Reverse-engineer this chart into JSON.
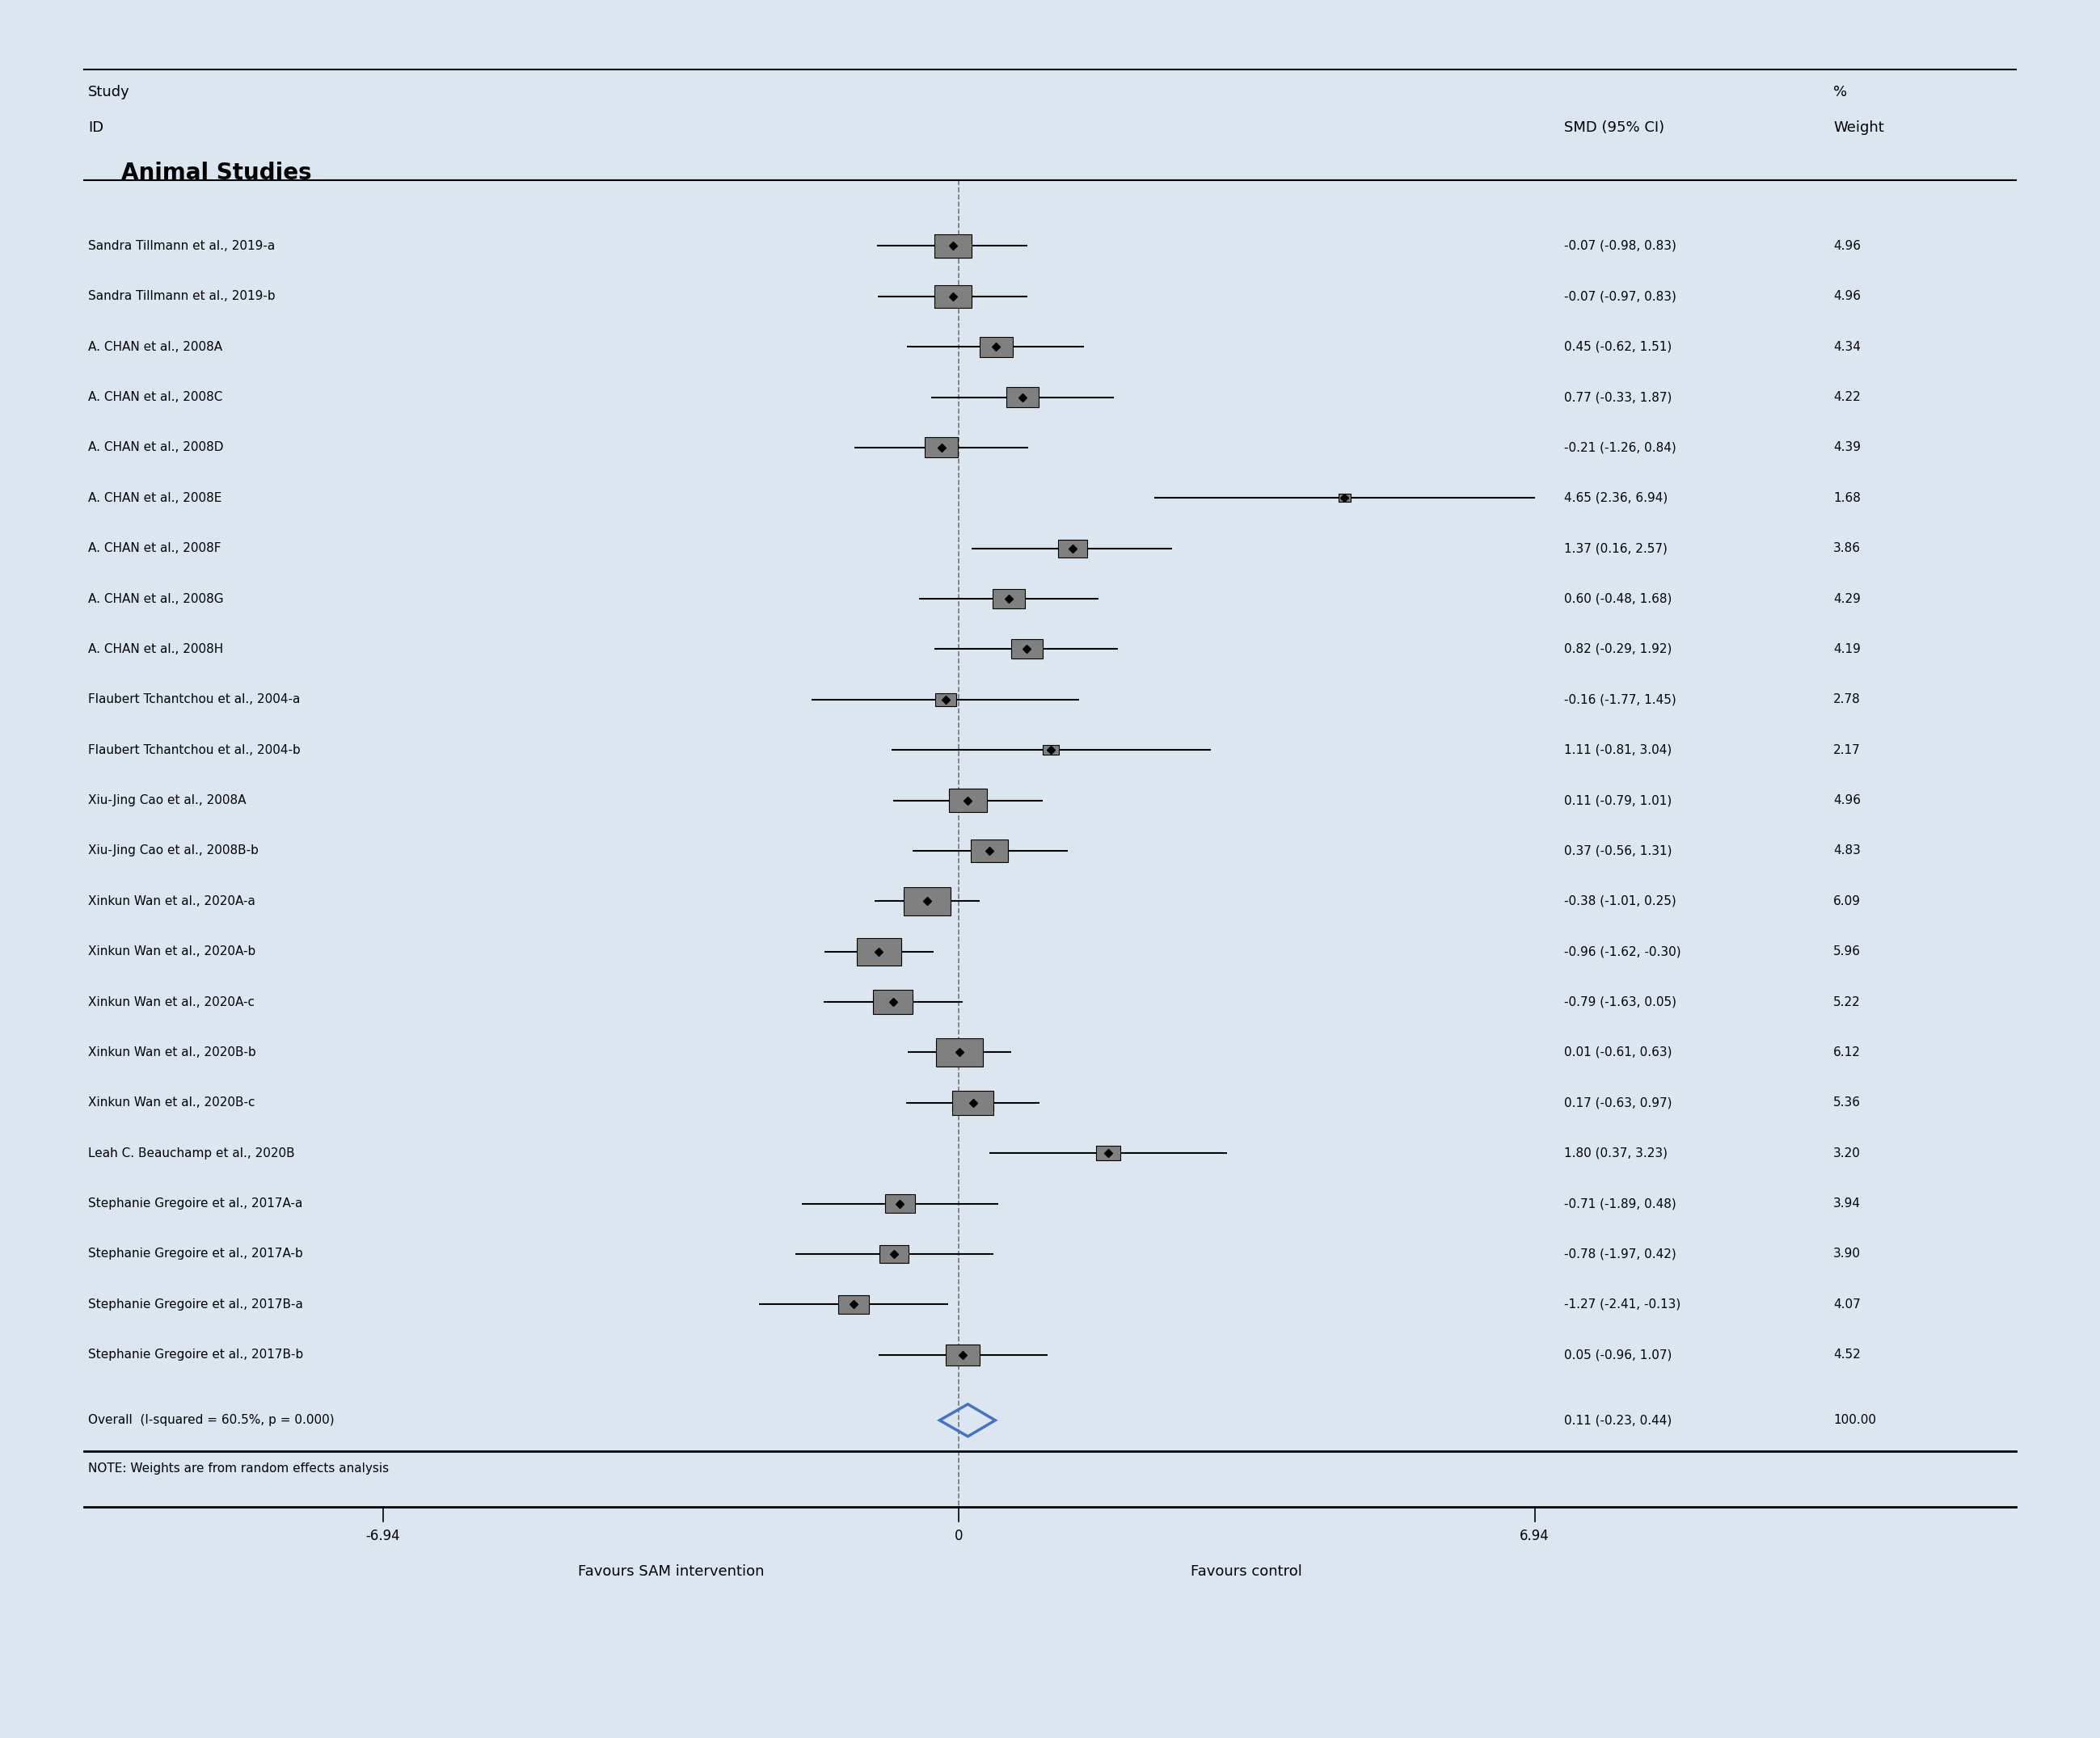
{
  "studies": [
    {
      "label": "Sandra Tillmann et al., 2019-a",
      "smd": -0.07,
      "ci_low": -0.98,
      "ci_high": 0.83,
      "weight": 4.96,
      "weight_str": "4.96"
    },
    {
      "label": "Sandra Tillmann et al., 2019-b",
      "smd": -0.07,
      "ci_low": -0.97,
      "ci_high": 0.83,
      "weight": 4.96,
      "weight_str": "4.96"
    },
    {
      "label": "A. CHAN et al., 2008A",
      "smd": 0.45,
      "ci_low": -0.62,
      "ci_high": 1.51,
      "weight": 4.34,
      "weight_str": "4.34"
    },
    {
      "label": "A. CHAN et al., 2008C",
      "smd": 0.77,
      "ci_low": -0.33,
      "ci_high": 1.87,
      "weight": 4.22,
      "weight_str": "4.22"
    },
    {
      "label": "A. CHAN et al., 2008D",
      "smd": -0.21,
      "ci_low": -1.26,
      "ci_high": 0.84,
      "weight": 4.39,
      "weight_str": "4.39"
    },
    {
      "label": "A. CHAN et al., 2008E",
      "smd": 4.65,
      "ci_low": 2.36,
      "ci_high": 6.94,
      "weight": 1.68,
      "weight_str": "1.68"
    },
    {
      "label": "A. CHAN et al., 2008F",
      "smd": 1.37,
      "ci_low": 0.16,
      "ci_high": 2.57,
      "weight": 3.86,
      "weight_str": "3.86"
    },
    {
      "label": "A. CHAN et al., 2008G",
      "smd": 0.6,
      "ci_low": -0.48,
      "ci_high": 1.68,
      "weight": 4.29,
      "weight_str": "4.29"
    },
    {
      "label": "A. CHAN et al., 2008H",
      "smd": 0.82,
      "ci_low": -0.29,
      "ci_high": 1.92,
      "weight": 4.19,
      "weight_str": "4.19"
    },
    {
      "label": "Flaubert Tchantchou et al., 2004-a",
      "smd": -0.16,
      "ci_low": -1.77,
      "ci_high": 1.45,
      "weight": 2.78,
      "weight_str": "2.78"
    },
    {
      "label": "Flaubert Tchantchou et al., 2004-b",
      "smd": 1.11,
      "ci_low": -0.81,
      "ci_high": 3.04,
      "weight": 2.17,
      "weight_str": "2.17"
    },
    {
      "label": "Xiu-Jing Cao et al., 2008A",
      "smd": 0.11,
      "ci_low": -0.79,
      "ci_high": 1.01,
      "weight": 4.96,
      "weight_str": "4.96"
    },
    {
      "label": "Xiu-Jing Cao et al., 2008B-b",
      "smd": 0.37,
      "ci_low": -0.56,
      "ci_high": 1.31,
      "weight": 4.83,
      "weight_str": "4.83"
    },
    {
      "label": "Xinkun Wan et al., 2020A-a",
      "smd": -0.38,
      "ci_low": -1.01,
      "ci_high": 0.25,
      "weight": 6.09,
      "weight_str": "6.09"
    },
    {
      "label": "Xinkun Wan et al., 2020A-b",
      "smd": -0.96,
      "ci_low": -1.62,
      "ci_high": -0.3,
      "weight": 5.96,
      "weight_str": "5.96"
    },
    {
      "label": "Xinkun Wan et al., 2020A-c",
      "smd": -0.79,
      "ci_low": -1.63,
      "ci_high": 0.05,
      "weight": 5.22,
      "weight_str": "5.22"
    },
    {
      "label": "Xinkun Wan et al., 2020B-b",
      "smd": 0.01,
      "ci_low": -0.61,
      "ci_high": 0.63,
      "weight": 6.12,
      "weight_str": "6.12"
    },
    {
      "label": "Xinkun Wan et al., 2020B-c",
      "smd": 0.17,
      "ci_low": -0.63,
      "ci_high": 0.97,
      "weight": 5.36,
      "weight_str": "5.36"
    },
    {
      "label": "Leah C. Beauchamp et al., 2020B",
      "smd": 1.8,
      "ci_low": 0.37,
      "ci_high": 3.23,
      "weight": 3.2,
      "weight_str": "3.20"
    },
    {
      "label": "Stephanie Gregoire et al., 2017A-a",
      "smd": -0.71,
      "ci_low": -1.89,
      "ci_high": 0.48,
      "weight": 3.94,
      "weight_str": "3.94"
    },
    {
      "label": "Stephanie Gregoire et al., 2017A-b",
      "smd": -0.78,
      "ci_low": -1.97,
      "ci_high": 0.42,
      "weight": 3.9,
      "weight_str": "3.90"
    },
    {
      "label": "Stephanie Gregoire et al., 2017B-a",
      "smd": -1.27,
      "ci_low": -2.41,
      "ci_high": -0.13,
      "weight": 4.07,
      "weight_str": "4.07"
    },
    {
      "label": "Stephanie Gregoire et al., 2017B-b",
      "smd": 0.05,
      "ci_low": -0.96,
      "ci_high": 1.07,
      "weight": 4.52,
      "weight_str": "4.52"
    }
  ],
  "overall": {
    "label": "Overall  (I-squared = 60.5%, p = 0.000)",
    "smd": 0.11,
    "ci_low": -0.23,
    "ci_high": 0.44,
    "weight_str": "100.00"
  },
  "note": "NOTE: Weights are from random effects analysis",
  "smd_col_label": "SMD (95% CI)",
  "weight_col_label": "Weight",
  "study_col_label": "Study",
  "id_col_label": "ID",
  "pct_col_label": "%",
  "group_label": "Animal Studies",
  "x_min": -6.94,
  "x_max": 6.94,
  "x_ticks": [
    -6.94,
    0,
    6.94
  ],
  "x_label_left": "Favours SAM intervention",
  "x_label_right": "Favours control",
  "bg_color": "#dce6f0",
  "plot_bg_color": "#ffffff",
  "diamond_color": "#4472c4",
  "box_color": "#808080",
  "line_color": "#000000",
  "max_weight": 6.12
}
